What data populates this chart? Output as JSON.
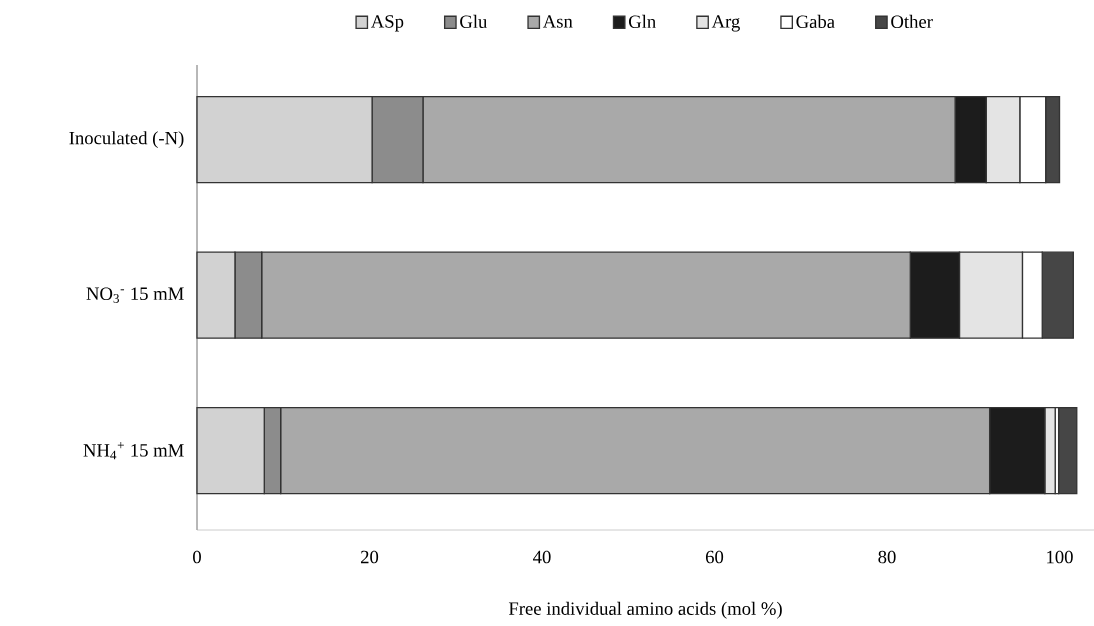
{
  "chart_data": {
    "type": "bar",
    "orientation": "horizontal",
    "stacked": true,
    "xlabel": "Free individual amino acids (mol %)",
    "categories": [
      "Inoculated (-N)",
      "NO$_{3}$$^{-}$ 15 mM",
      "NH$_{4}$$^{+}$ 15 mM"
    ],
    "series": [
      {
        "name": "ASp",
        "color": "#d2d2d2",
        "values": [
          20.3,
          4.4,
          7.8
        ]
      },
      {
        "name": "Glu",
        "color": "#8c8c8c",
        "values": [
          5.9,
          3.1,
          1.9
        ]
      },
      {
        "name": "Asn",
        "color": "#a9a9a9",
        "values": [
          61.7,
          75.2,
          82.2
        ]
      },
      {
        "name": "Gln",
        "color": "#1c1c1c",
        "values": [
          3.6,
          5.7,
          6.4
        ]
      },
      {
        "name": "Arg",
        "color": "#e4e4e4",
        "values": [
          3.9,
          7.3,
          1.2
        ]
      },
      {
        "name": "Gaba",
        "color": "#ffffff",
        "values": [
          3.0,
          2.3,
          0.4
        ]
      },
      {
        "name": "Other",
        "color": "#464646",
        "values": [
          1.6,
          3.6,
          2.1
        ]
      }
    ],
    "xlim": [
      0,
      104
    ],
    "xticks": [
      0,
      20,
      40,
      60,
      80,
      100
    ],
    "grid": false,
    "legend": "top"
  }
}
